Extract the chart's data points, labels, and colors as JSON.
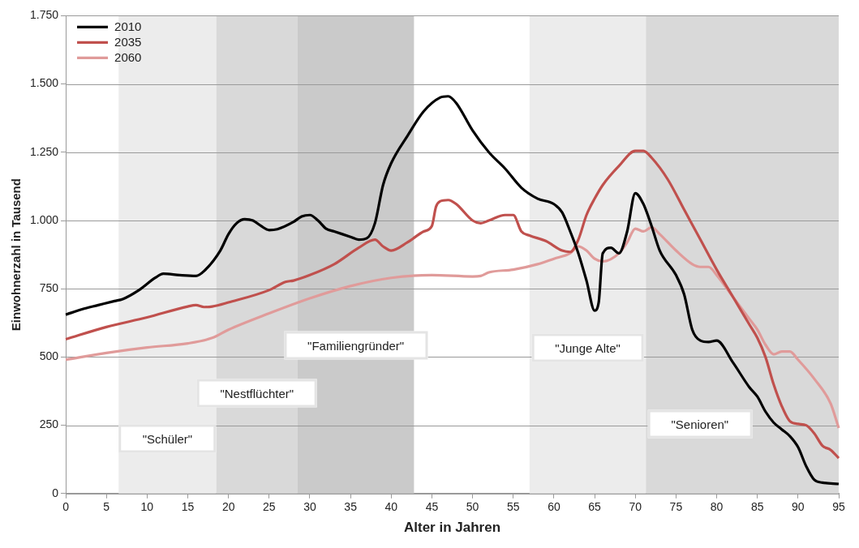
{
  "chart_data": {
    "type": "line",
    "xlabel": "Alter in Jahren",
    "ylabel": "Einwohnerzahl in Tausend",
    "xlim": [
      0,
      95
    ],
    "xticks": [
      0,
      5,
      10,
      15,
      20,
      25,
      30,
      35,
      40,
      45,
      50,
      55,
      60,
      65,
      70,
      75,
      80,
      85,
      90,
      95
    ],
    "ylim": [
      0,
      1750
    ],
    "yticks": [
      0,
      250,
      500,
      750,
      {
        "value": 1000,
        "label": "1.000"
      },
      {
        "value": 1250,
        "label": "1.250"
      },
      {
        "value": 1500,
        "label": "1.500"
      },
      {
        "value": 1750,
        "label": "1.750"
      }
    ],
    "grid": "y",
    "legend": "top left",
    "marker": "none",
    "line_style": "solid",
    "bands": [
      {
        "axis": "x",
        "from": 6.5,
        "to": 18.5,
        "label": "\"Schüler\"",
        "color": "#ececec"
      },
      {
        "axis": "x",
        "from": 18.5,
        "to": 28.5,
        "label": "\"Nestflüchter\"",
        "color": "#d9d9d9"
      },
      {
        "axis": "x",
        "from": 28.5,
        "to": 42.8,
        "label": "\"Familiengründer\"",
        "color": "#cacaca"
      },
      {
        "axis": "x",
        "from": 57,
        "to": 71.3,
        "label": "\"Junge Alte\"",
        "color": "#ececec"
      },
      {
        "axis": "x",
        "from": 71.3,
        "to": 95,
        "label": "\"Senioren\"",
        "color": "#d9d9d9"
      }
    ],
    "series": [
      {
        "name": "2010",
        "color": "#000000",
        "x": [
          0,
          2,
          4,
          6,
          7,
          9,
          11,
          12,
          14,
          16,
          17,
          19,
          20,
          21,
          22,
          23,
          24,
          25,
          26,
          28,
          29,
          30,
          31,
          32,
          33,
          35,
          36,
          37,
          38,
          39,
          40,
          42,
          44,
          46,
          47,
          48,
          50,
          52,
          54,
          56,
          58,
          60,
          61,
          62,
          63,
          64,
          65,
          65.5,
          66,
          67,
          68,
          69,
          70,
          71,
          72,
          73,
          75,
          76,
          77,
          78,
          79,
          80,
          82,
          84,
          85,
          86,
          87,
          88,
          89,
          90,
          91,
          92,
          93,
          95
        ],
        "values": [
          655,
          675,
          690,
          705,
          712,
          745,
          790,
          805,
          800,
          797,
          815,
          890,
          950,
          990,
          1005,
          1000,
          980,
          965,
          968,
          995,
          1015,
          1020,
          1000,
          970,
          960,
          940,
          930,
          935,
          990,
          1130,
          1210,
          1310,
          1400,
          1450,
          1455,
          1430,
          1330,
          1250,
          1190,
          1120,
          1080,
          1060,
          1030,
          960,
          880,
          780,
          670,
          700,
          880,
          900,
          880,
          960,
          1100,
          1060,
          980,
          890,
          800,
          730,
          600,
          560,
          555,
          560,
          480,
          390,
          355,
          300,
          260,
          235,
          210,
          170,
          100,
          50,
          40,
          35
        ]
      },
      {
        "name": "2035",
        "color": "#c0504d",
        "x": [
          0,
          5,
          10,
          15,
          16,
          17,
          18,
          20,
          25,
          27,
          28,
          30,
          33,
          36,
          38,
          39,
          40,
          42,
          44,
          45,
          45.5,
          46,
          47,
          48,
          50,
          51,
          52,
          54,
          55,
          56,
          57,
          59,
          61,
          62,
          63,
          64,
          65,
          66,
          68,
          70,
          71,
          72,
          74,
          76,
          78,
          80,
          82,
          84,
          85,
          86,
          87,
          88,
          89,
          90,
          91,
          92,
          93,
          94,
          95
        ],
        "values": [
          565,
          610,
          645,
          685,
          690,
          683,
          685,
          700,
          745,
          775,
          780,
          800,
          840,
          900,
          930,
          905,
          890,
          920,
          960,
          980,
          1050,
          1070,
          1075,
          1060,
          1000,
          990,
          1000,
          1020,
          1020,
          960,
          945,
          925,
          890,
          885,
          930,
          1020,
          1080,
          1130,
          1200,
          1255,
          1255,
          1230,
          1150,
          1040,
          930,
          820,
          720,
          620,
          570,
          500,
          400,
          320,
          265,
          255,
          250,
          220,
          175,
          160,
          130
        ]
      },
      {
        "name": "2060",
        "color": "#e09b9a",
        "x": [
          0,
          5,
          10,
          15,
          18,
          20,
          25,
          30,
          35,
          40,
          45,
          50,
          51,
          52,
          55,
          58,
          60,
          62,
          63,
          64,
          65,
          66,
          68,
          69,
          70,
          71,
          72,
          73,
          75,
          77,
          78,
          79,
          80,
          82,
          84,
          85,
          86,
          87,
          88,
          89,
          90,
          92,
          94,
          95
        ],
        "values": [
          490,
          515,
          535,
          550,
          570,
          600,
          660,
          715,
          760,
          790,
          800,
          795,
          797,
          810,
          820,
          840,
          860,
          880,
          905,
          890,
          860,
          850,
          880,
          920,
          970,
          960,
          975,
          950,
          890,
          840,
          830,
          830,
          800,
          720,
          640,
          600,
          545,
          510,
          520,
          520,
          490,
          420,
          330,
          240
        ]
      }
    ]
  }
}
